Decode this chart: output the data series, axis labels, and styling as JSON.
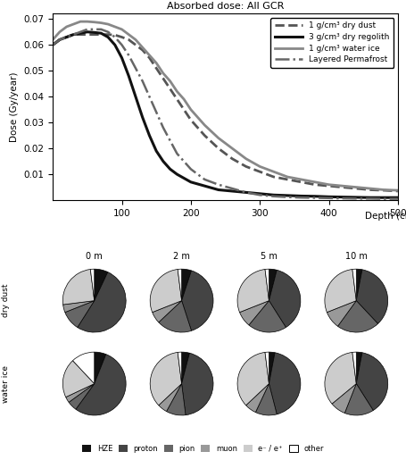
{
  "title": "Absorbed dose: All GCR",
  "ylabel": "Dose (Gy/year)",
  "xlabel": "Depth (cm)",
  "ylim": [
    0,
    0.072
  ],
  "xlim": [
    0,
    500
  ],
  "yticks": [
    0.01,
    0.02,
    0.03,
    0.04,
    0.05,
    0.06,
    0.07
  ],
  "xticks": [
    100,
    200,
    300,
    400,
    500
  ],
  "lines": {
    "dry_dust_1": {
      "label": "1 g/cm³ dry dust",
      "style": "--",
      "color": "#555555",
      "linewidth": 2.0,
      "x": [
        0,
        10,
        20,
        30,
        40,
        50,
        60,
        70,
        80,
        90,
        100,
        110,
        120,
        130,
        140,
        150,
        160,
        170,
        180,
        190,
        200,
        220,
        240,
        260,
        280,
        300,
        320,
        340,
        360,
        380,
        400,
        420,
        440,
        460,
        480,
        500
      ],
      "y": [
        0.06,
        0.062,
        0.063,
        0.064,
        0.064,
        0.064,
        0.064,
        0.064,
        0.064,
        0.0638,
        0.063,
        0.062,
        0.06,
        0.058,
        0.055,
        0.051,
        0.047,
        0.043,
        0.039,
        0.035,
        0.031,
        0.025,
        0.02,
        0.016,
        0.013,
        0.011,
        0.009,
        0.008,
        0.007,
        0.006,
        0.0055,
        0.005,
        0.0045,
        0.004,
        0.0038,
        0.0035
      ]
    },
    "dry_regolith_3": {
      "label": "3 g/cm³ dry regolith",
      "style": "-",
      "color": "#111111",
      "linewidth": 2.2,
      "x": [
        0,
        10,
        20,
        30,
        40,
        50,
        60,
        70,
        80,
        90,
        100,
        110,
        120,
        130,
        140,
        150,
        160,
        170,
        180,
        190,
        200,
        220,
        240,
        260,
        280,
        300,
        320,
        340,
        360,
        380,
        400,
        420,
        440,
        460,
        480,
        500
      ],
      "y": [
        0.06,
        0.062,
        0.063,
        0.064,
        0.0645,
        0.065,
        0.0648,
        0.0645,
        0.063,
        0.06,
        0.055,
        0.048,
        0.04,
        0.032,
        0.025,
        0.019,
        0.015,
        0.012,
        0.01,
        0.0085,
        0.007,
        0.0055,
        0.004,
        0.0035,
        0.003,
        0.0025,
        0.002,
        0.0018,
        0.0016,
        0.0015,
        0.0013,
        0.0012,
        0.0011,
        0.001,
        0.001,
        0.001
      ]
    },
    "water_ice_1": {
      "label": "1 g/cm³ water ice",
      "style": "-",
      "color": "#888888",
      "linewidth": 2.0,
      "x": [
        0,
        10,
        20,
        30,
        40,
        50,
        60,
        70,
        80,
        90,
        100,
        110,
        120,
        130,
        140,
        150,
        160,
        170,
        180,
        190,
        200,
        220,
        240,
        260,
        280,
        300,
        320,
        340,
        360,
        380,
        400,
        420,
        440,
        460,
        480,
        500
      ],
      "y": [
        0.062,
        0.065,
        0.067,
        0.068,
        0.069,
        0.069,
        0.0688,
        0.0685,
        0.068,
        0.067,
        0.066,
        0.064,
        0.062,
        0.059,
        0.056,
        0.053,
        0.049,
        0.046,
        0.042,
        0.039,
        0.035,
        0.029,
        0.024,
        0.02,
        0.016,
        0.013,
        0.011,
        0.009,
        0.008,
        0.007,
        0.006,
        0.0055,
        0.005,
        0.0045,
        0.004,
        0.0038
      ]
    },
    "layered_permafrost": {
      "label": "Layered Permafrost",
      "style": "-.",
      "color": "#666666",
      "linewidth": 1.8,
      "x": [
        0,
        10,
        20,
        30,
        40,
        50,
        60,
        70,
        80,
        90,
        100,
        110,
        120,
        130,
        140,
        150,
        160,
        170,
        180,
        190,
        200,
        220,
        240,
        260,
        280,
        300,
        320,
        340,
        360,
        380,
        400,
        420,
        440,
        460,
        480,
        500
      ],
      "y": [
        0.06,
        0.062,
        0.063,
        0.064,
        0.065,
        0.066,
        0.066,
        0.066,
        0.065,
        0.063,
        0.06,
        0.056,
        0.051,
        0.046,
        0.04,
        0.034,
        0.028,
        0.023,
        0.018,
        0.015,
        0.012,
        0.008,
        0.006,
        0.0045,
        0.003,
        0.002,
        0.0015,
        0.0012,
        0.001,
        0.0009,
        0.0008,
        0.0007,
        0.0006,
        0.0006,
        0.0005,
        0.0005
      ]
    }
  },
  "pie_colors": {
    "HZE": "#111111",
    "proton": "#444444",
    "pion": "#666666",
    "muon": "#999999",
    "e": "#cccccc",
    "other": "#ffffff"
  },
  "pie_depths": [
    "0 m",
    "2 m",
    "5 m",
    "10 m"
  ],
  "pie_rows": [
    "dry dust",
    "water ice"
  ],
  "pie_data": {
    "dry_dust": {
      "0 m": [
        0.07,
        0.52,
        0.1,
        0.04,
        0.25,
        0.02
      ],
      "2 m": [
        0.05,
        0.4,
        0.18,
        0.06,
        0.29,
        0.02
      ],
      "5 m": [
        0.04,
        0.37,
        0.2,
        0.08,
        0.29,
        0.02
      ],
      "10 m": [
        0.03,
        0.35,
        0.22,
        0.09,
        0.29,
        0.02
      ]
    },
    "water_ice": {
      "0 m": [
        0.06,
        0.54,
        0.05,
        0.03,
        0.2,
        0.12
      ],
      "2 m": [
        0.04,
        0.44,
        0.1,
        0.05,
        0.35,
        0.02
      ],
      "5 m": [
        0.03,
        0.43,
        0.11,
        0.06,
        0.35,
        0.02
      ],
      "10 m": [
        0.03,
        0.38,
        0.15,
        0.08,
        0.34,
        0.02
      ]
    }
  },
  "pie_labels": [
    "HZE",
    "proton",
    "pion",
    "muon",
    "e⁻ / e⁺",
    "other"
  ],
  "legend_labels": [
    "HZE",
    "proton",
    "pion",
    "muon",
    "e⁻ / e⁺",
    "other"
  ]
}
